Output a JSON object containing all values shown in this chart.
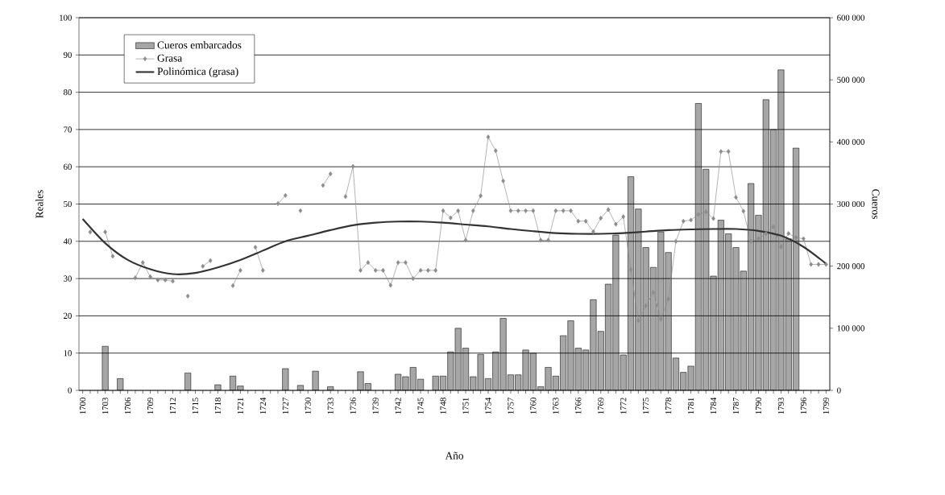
{
  "chart_data": {
    "type": "bar",
    "xlabel": "Año",
    "ylabel": "Reales",
    "y2label": "Cueros",
    "x": [
      1701,
      1702,
      1703,
      1704,
      1705,
      1706,
      1707,
      1708,
      1709,
      1710,
      1711,
      1712,
      1713,
      1714,
      1715,
      1716,
      1717,
      1718,
      1719,
      1720,
      1721,
      1722,
      1723,
      1724,
      1725,
      1726,
      1727,
      1728,
      1729,
      1730,
      1731,
      1732,
      1733,
      1734,
      1735,
      1736,
      1737,
      1738,
      1739,
      1740,
      1741,
      1742,
      1743,
      1744,
      1745,
      1746,
      1747,
      1748,
      1749,
      1750,
      1751,
      1752,
      1753,
      1754,
      1755,
      1756,
      1757,
      1758,
      1759,
      1760,
      1761,
      1762,
      1763,
      1764,
      1765,
      1766,
      1767,
      1768,
      1769,
      1770,
      1771,
      1772,
      1773,
      1774,
      1775,
      1776,
      1777,
      1778,
      1779,
      1780,
      1781,
      1782,
      1783,
      1784,
      1785,
      1786,
      1787,
      1788,
      1789,
      1790,
      1791,
      1792,
      1793,
      1794,
      1795,
      1796,
      1797,
      1798,
      1799
    ],
    "xlim": [
      1699.5,
      1799.5
    ],
    "xticks": [
      1700,
      {
        "value": 1701,
        "label": null
      },
      {
        "value": 1702,
        "label": null
      },
      1703,
      {
        "value": 1704,
        "label": null
      },
      {
        "value": 1705,
        "label": null
      },
      1706,
      {
        "value": 1707,
        "label": null
      },
      {
        "value": 1708,
        "label": null
      },
      1709,
      {
        "value": 1710,
        "label": null
      },
      {
        "value": 1711,
        "label": null
      },
      1712,
      {
        "value": 1713,
        "label": null
      },
      {
        "value": 1714,
        "label": null
      },
      1715,
      {
        "value": 1716,
        "label": null
      },
      {
        "value": 1717,
        "label": null
      },
      1718,
      {
        "value": 1719,
        "label": null
      },
      {
        "value": 1720,
        "label": null
      },
      1721,
      {
        "value": 1722,
        "label": null
      },
      {
        "value": 1723,
        "label": null
      },
      1724,
      {
        "value": 1725,
        "label": null
      },
      {
        "value": 1726,
        "label": null
      },
      1727,
      {
        "value": 1728,
        "label": null
      },
      {
        "value": 1729,
        "label": null
      },
      1730,
      {
        "value": 1731,
        "label": null
      },
      {
        "value": 1732,
        "label": null
      },
      1733,
      {
        "value": 1734,
        "label": null
      },
      {
        "value": 1735,
        "label": null
      },
      1736,
      {
        "value": 1737,
        "label": null
      },
      {
        "value": 1738,
        "label": null
      },
      1739,
      {
        "value": 1740,
        "label": null
      },
      {
        "value": 1741,
        "label": null
      },
      1742,
      {
        "value": 1743,
        "label": null
      },
      {
        "value": 1744,
        "label": null
      },
      1745,
      {
        "value": 1746,
        "label": null
      },
      {
        "value": 1747,
        "label": null
      },
      1748,
      {
        "value": 1749,
        "label": null
      },
      {
        "value": 1750,
        "label": null
      },
      1751,
      {
        "value": 1752,
        "label": null
      },
      {
        "value": 1753,
        "label": null
      },
      1754,
      {
        "value": 1755,
        "label": null
      },
      {
        "value": 1756,
        "label": null
      },
      1757,
      {
        "value": 1758,
        "label": null
      },
      {
        "value": 1759,
        "label": null
      },
      1760,
      {
        "value": 1761,
        "label": null
      },
      {
        "value": 1762,
        "label": null
      },
      1763,
      {
        "value": 1764,
        "label": null
      },
      {
        "value": 1765,
        "label": null
      },
      1766,
      {
        "value": 1767,
        "label": null
      },
      {
        "value": 1768,
        "label": null
      },
      1769,
      {
        "value": 1770,
        "label": null
      },
      {
        "value": 1771,
        "label": null
      },
      1772,
      {
        "value": 1773,
        "label": null
      },
      {
        "value": 1774,
        "label": null
      },
      1775,
      {
        "value": 1776,
        "label": null
      },
      {
        "value": 1777,
        "label": null
      },
      1778,
      {
        "value": 1779,
        "label": null
      },
      {
        "value": 1780,
        "label": null
      },
      1781,
      {
        "value": 1782,
        "label": null
      },
      {
        "value": 1783,
        "label": null
      },
      1784,
      {
        "value": 1785,
        "label": null
      },
      {
        "value": 1786,
        "label": null
      },
      1787,
      {
        "value": 1788,
        "label": null
      },
      {
        "value": 1789,
        "label": null
      },
      1790,
      {
        "value": 1791,
        "label": null
      },
      {
        "value": 1792,
        "label": null
      },
      1793,
      {
        "value": 1794,
        "label": null
      },
      {
        "value": 1795,
        "label": null
      },
      1796,
      {
        "value": 1797,
        "label": null
      },
      {
        "value": 1798,
        "label": null
      },
      1799
    ],
    "ylim": [
      0,
      100
    ],
    "yticks": [
      0,
      10,
      20,
      30,
      40,
      50,
      60,
      70,
      80,
      90,
      100
    ],
    "y2lim": [
      0,
      600000
    ],
    "y2ticks": [
      0,
      {
        "value": 100000,
        "label": "100 000"
      },
      {
        "value": 200000,
        "label": "200 000"
      },
      {
        "value": 300000,
        "label": "300 000"
      },
      {
        "value": 400000,
        "label": "400 000"
      },
      {
        "value": 500000,
        "label": "500 000"
      },
      {
        "value": 600000,
        "label": "600 000"
      }
    ],
    "grid": "y",
    "legend": "top left",
    "series": [
      {
        "name": "Cueros embarcados",
        "axis": "y2",
        "color": "#a6a6a6",
        "values": [
          null,
          null,
          71000,
          null,
          19000,
          null,
          null,
          null,
          null,
          null,
          null,
          null,
          null,
          28000,
          null,
          null,
          null,
          9000,
          null,
          23000,
          7000,
          null,
          null,
          null,
          null,
          null,
          35000,
          null,
          8000,
          null,
          31000,
          null,
          6000,
          null,
          null,
          null,
          30000,
          11000,
          null,
          null,
          null,
          26000,
          22000,
          37000,
          18000,
          null,
          23000,
          23000,
          62000,
          100000,
          68000,
          22000,
          58000,
          19000,
          62000,
          116000,
          25000,
          25000,
          65000,
          60000,
          6000,
          37000,
          23000,
          88000,
          112000,
          68000,
          65000,
          146000,
          95000,
          171000,
          250000,
          57000,
          344000,
          292000,
          230000,
          198000,
          255000,
          222000,
          52000,
          29000,
          39000,
          462000,
          356000,
          184000,
          274000,
          252000,
          230000,
          192000,
          333000,
          282000,
          468000,
          420000,
          516000,
          244000,
          390000,
          null,
          null,
          null,
          null
        ]
      },
      {
        "name": "Grasa",
        "type": "line",
        "color": "#8c8c8c",
        "marker": "diamond",
        "values": [
          42.5,
          null,
          42.5,
          36.0,
          null,
          null,
          30.2,
          34.3,
          30.5,
          29.6,
          29.6,
          29.3,
          null,
          25.3,
          null,
          33.3,
          34.8,
          null,
          null,
          28.1,
          32.2,
          null,
          38.4,
          32.2,
          null,
          50.1,
          52.3,
          null,
          48.2,
          null,
          null,
          55.0,
          58.1,
          null,
          52.0,
          60.1,
          32.2,
          34.3,
          32.2,
          32.2,
          28.2,
          34.3,
          34.3,
          30.0,
          32.2,
          32.2,
          32.2,
          48.2,
          46.3,
          48.2,
          40.3,
          48.2,
          52.2,
          68.0,
          64.3,
          56.2,
          48.2,
          48.2,
          48.2,
          48.2,
          40.3,
          40.3,
          48.2,
          48.2,
          48.2,
          45.4,
          45.4,
          42.6,
          46.2,
          48.5,
          44.6,
          46.6,
          32.4,
          18.7,
          22.7,
          26.3,
          19.1,
          24.5,
          40.0,
          45.4,
          45.7,
          47.2,
          47.9,
          46.1,
          64.1,
          64.1,
          51.8,
          48.1,
          40.0,
          40.7,
          42.1,
          43.9,
          38.5,
          42.1,
          41.0,
          40.7,
          33.8,
          33.8,
          33.8
        ]
      },
      {
        "name": "Polinómica (grasa)",
        "type": "line",
        "color": "#333333",
        "marker": "none",
        "x": [
          1700,
          1703,
          1706,
          1709,
          1712,
          1715,
          1718,
          1721,
          1724,
          1727,
          1730,
          1733,
          1736,
          1739,
          1742,
          1745,
          1748,
          1751,
          1754,
          1757,
          1760,
          1763,
          1766,
          1769,
          1772,
          1775,
          1778,
          1781,
          1784,
          1787,
          1790,
          1793,
          1796,
          1799
        ],
        "values": [
          46.0,
          39.5,
          35.0,
          32.5,
          31.2,
          31.5,
          33.0,
          35.0,
          37.5,
          40.0,
          41.5,
          43.0,
          44.3,
          45.0,
          45.3,
          45.3,
          45.0,
          44.5,
          44.0,
          43.3,
          42.7,
          42.2,
          42.0,
          42.0,
          42.2,
          42.6,
          43.0,
          43.2,
          43.3,
          43.3,
          42.8,
          41.5,
          38.5,
          34.0
        ]
      }
    ]
  }
}
